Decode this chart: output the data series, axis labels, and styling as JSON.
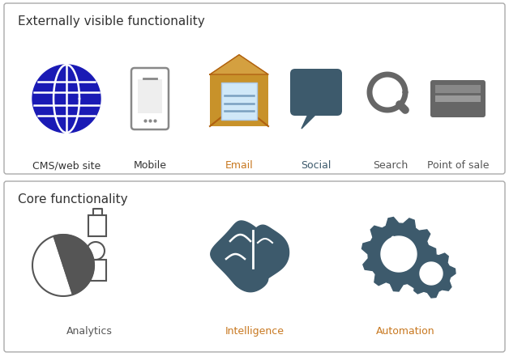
{
  "top_title": "Externally visible functionality",
  "bottom_title": "Core functionality",
  "top_items": [
    {
      "label": "CMS/web site",
      "label_color": "#333333"
    },
    {
      "label": "Mobile",
      "label_color": "#333333"
    },
    {
      "label": "Email",
      "label_color": "#c87820"
    },
    {
      "label": "Social",
      "label_color": "#3d5a6c"
    },
    {
      "label": "Search",
      "label_color": "#555555"
    },
    {
      "label": "Point of sale",
      "label_color": "#555555"
    }
  ],
  "bottom_items": [
    {
      "label": "Analytics",
      "label_color": "#555555"
    },
    {
      "label": "Intelligence",
      "label_color": "#c87820"
    },
    {
      "label": "Automation",
      "label_color": "#c87820"
    }
  ],
  "title_color": "#333333",
  "border_color": "#aaaaaa",
  "bg_color": "#ffffff",
  "label_fontsize": 9,
  "title_fontsize": 11,
  "globe_color": "#1a1ab5",
  "dark_blue": "#3d5a6c",
  "gray": "#666666",
  "orange": "#c87820"
}
